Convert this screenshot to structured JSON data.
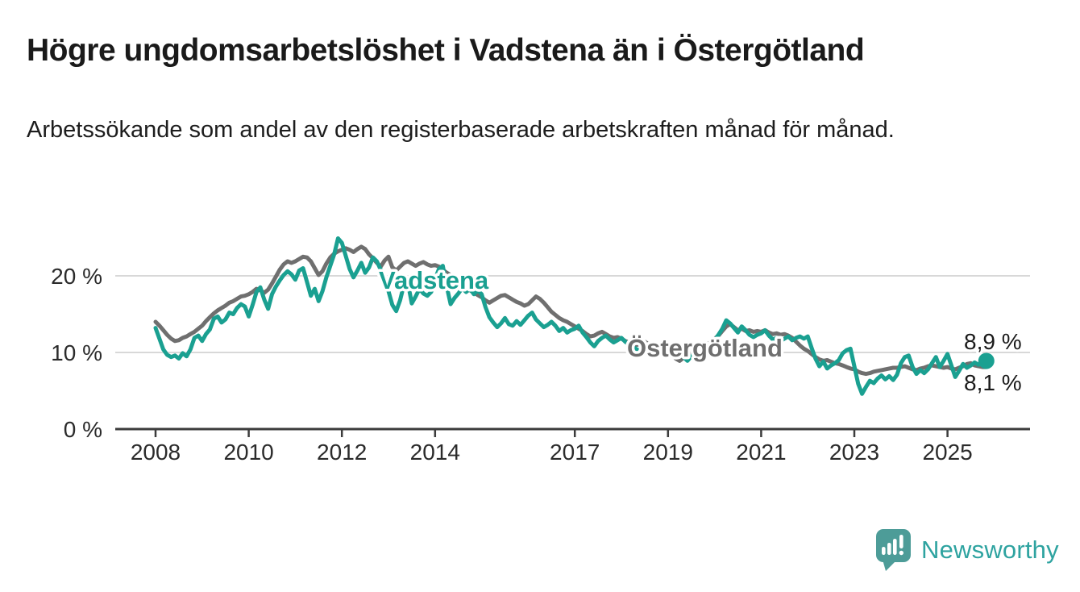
{
  "page": {
    "title": "Högre ungdomsarbetslöshet i Vadstena än i Östergötland",
    "subtitle": "Arbetssökande som andel av den registerbaserade arbetskraften månad för månad."
  },
  "branding": {
    "logo_text": "Newsworthy",
    "logo_icon": "bar-chart-speech-bubble-icon"
  },
  "colors": {
    "vadstena": "#1aa091",
    "ostergotland": "#6f6f6f",
    "grid": "#d8d8d8",
    "axis": "#3c3c3c",
    "text": "#1a1a1a",
    "logo_badge": "#4d9c98",
    "logo_text": "#2ea3a0"
  },
  "chart_data": {
    "type": "line",
    "title": "Högre ungdomsarbetslöshet i Vadstena än i Östergötland",
    "subtitle": "Arbetssökande som andel av den registerbaserade arbetskraften månad för månad.",
    "frequency": "monthly",
    "x_start": "2008-01",
    "x_end": "2025-11",
    "ylim": [
      0,
      27
    ],
    "grid": "horizontal-only",
    "y_ticks": [
      {
        "value": 0,
        "label": "0 %"
      },
      {
        "value": 10,
        "label": "10 %"
      },
      {
        "value": 20,
        "label": "20 %"
      }
    ],
    "x_ticks": [
      {
        "year": 2008,
        "label": "2008"
      },
      {
        "year": 2010,
        "label": "2010"
      },
      {
        "year": 2012,
        "label": "2012"
      },
      {
        "year": 2014,
        "label": "2014"
      },
      {
        "year": 2017,
        "label": "2017"
      },
      {
        "year": 2019,
        "label": "2019"
      },
      {
        "year": 2021,
        "label": "2021"
      },
      {
        "year": 2023,
        "label": "2023"
      },
      {
        "year": 2025,
        "label": "2025"
      }
    ],
    "series": [
      {
        "name": "Östergötland",
        "color": "#6f6f6f",
        "end_dot": false,
        "end_value_label": "8,1 %",
        "values": [
          14.0,
          13.5,
          12.9,
          12.3,
          11.8,
          11.5,
          11.6,
          11.9,
          12.1,
          12.4,
          12.7,
          13.1,
          13.5,
          14.1,
          14.6,
          15.1,
          15.5,
          15.8,
          16.1,
          16.5,
          16.7,
          17.0,
          17.3,
          17.4,
          17.6,
          17.9,
          18.3,
          18.1,
          17.8,
          18.2,
          19.0,
          19.9,
          20.8,
          21.5,
          21.9,
          21.7,
          21.9,
          22.2,
          22.5,
          22.4,
          21.9,
          21.0,
          20.1,
          20.6,
          21.6,
          22.4,
          22.9,
          23.2,
          23.4,
          23.6,
          23.4,
          23.1,
          23.5,
          23.8,
          23.5,
          22.8,
          22.3,
          21.7,
          21.2,
          22.0,
          22.5,
          21.1,
          20.7,
          21.2,
          21.7,
          21.9,
          21.6,
          21.3,
          21.6,
          21.8,
          21.5,
          21.3,
          21.4,
          21.2,
          20.8,
          20.4,
          20.1,
          19.7,
          19.2,
          18.8,
          18.5,
          18.1,
          17.8,
          17.5,
          17.2,
          16.8,
          16.5,
          16.8,
          17.1,
          17.4,
          17.5,
          17.2,
          16.9,
          16.6,
          16.4,
          16.1,
          16.3,
          16.8,
          17.3,
          17.0,
          16.5,
          15.9,
          15.3,
          14.9,
          14.5,
          14.2,
          14.0,
          13.7,
          13.4,
          13.1,
          12.8,
          12.4,
          12.1,
          12.2,
          12.5,
          12.7,
          12.4,
          12.1,
          11.9,
          12.0,
          11.8,
          11.5,
          11.3,
          11.1,
          11.0,
          11.2,
          11.4,
          11.1,
          10.9,
          10.7,
          10.5,
          10.4,
          10.1,
          9.7,
          9.2,
          8.9,
          9.3,
          9.6,
          9.9,
          10.2,
          10.4,
          10.7,
          11.0,
          11.4,
          11.8,
          12.2,
          12.8,
          13.4,
          13.7,
          13.3,
          12.9,
          13.1,
          12.8,
          12.9,
          12.7,
          12.8,
          12.7,
          12.9,
          12.6,
          12.4,
          12.5,
          12.3,
          12.4,
          12.2,
          11.9,
          11.4,
          10.9,
          10.5,
          10.2,
          9.8,
          9.4,
          9.1,
          8.9,
          9.0,
          8.8,
          8.6,
          8.5,
          8.3,
          8.1,
          7.9,
          7.8,
          7.5,
          7.3,
          7.2,
          7.3,
          7.5,
          7.6,
          7.7,
          7.8,
          7.9,
          8.0,
          8.0,
          8.1,
          8.2,
          8.0,
          7.8,
          7.7,
          7.9,
          8.0,
          8.2,
          8.3,
          8.2,
          8.1,
          8.0,
          8.1,
          7.9,
          7.8,
          8.0,
          8.2,
          8.5,
          8.6,
          8.3,
          8.2,
          8.1,
          8.1
        ]
      },
      {
        "name": "Vadstena",
        "color": "#1aa091",
        "end_dot": true,
        "end_value_label": "8,9 %",
        "values": [
          13.2,
          11.8,
          10.4,
          9.7,
          9.4,
          9.6,
          9.2,
          9.9,
          9.5,
          10.4,
          11.9,
          12.2,
          11.5,
          12.4,
          13.0,
          14.4,
          14.7,
          13.9,
          14.3,
          15.2,
          15.0,
          15.8,
          16.3,
          16.0,
          14.7,
          16.2,
          17.9,
          18.5,
          16.9,
          15.7,
          17.6,
          18.6,
          19.4,
          20.1,
          20.6,
          20.2,
          19.5,
          20.7,
          21.0,
          19.2,
          17.4,
          18.3,
          16.7,
          18.0,
          19.8,
          21.3,
          22.8,
          24.9,
          24.3,
          22.6,
          20.9,
          19.8,
          20.7,
          21.7,
          20.4,
          21.1,
          22.4,
          21.9,
          20.8,
          19.6,
          18.0,
          16.2,
          15.4,
          16.8,
          18.9,
          19.1,
          16.4,
          17.3,
          18.3,
          17.7,
          17.4,
          17.9,
          19.6,
          20.9,
          21.3,
          18.6,
          16.3,
          17.1,
          17.7,
          18.4,
          17.9,
          18.3,
          17.6,
          18.1,
          17.6,
          15.9,
          14.6,
          13.9,
          13.3,
          13.8,
          14.5,
          13.7,
          13.5,
          14.1,
          13.6,
          14.2,
          14.8,
          15.2,
          14.3,
          13.8,
          13.3,
          13.6,
          14.0,
          13.5,
          12.8,
          13.2,
          12.6,
          12.9,
          13.1,
          13.5,
          12.6,
          12.0,
          11.3,
          10.8,
          11.5,
          11.9,
          12.2,
          11.7,
          11.3,
          11.6,
          11.9,
          11.4,
          11.0,
          10.7,
          10.4,
          10.1,
          10.6,
          11.0,
          10.5,
          10.1,
          9.8,
          9.6,
          9.7,
          10.2,
          10.7,
          10.1,
          9.4,
          8.9,
          9.5,
          10.0,
          10.4,
          10.7,
          11.0,
          11.2,
          11.6,
          12.3,
          13.1,
          14.2,
          13.8,
          13.2,
          12.6,
          13.4,
          12.9,
          12.3,
          12.0,
          12.3,
          12.5,
          12.9,
          12.2,
          11.7,
          11.9,
          11.5,
          11.8,
          12.1,
          11.6,
          11.9,
          12.1,
          11.8,
          12.1,
          10.6,
          9.2,
          8.2,
          8.8,
          7.9,
          8.3,
          8.6,
          9.0,
          9.9,
          10.3,
          10.5,
          8.2,
          5.9,
          4.6,
          5.5,
          6.3,
          6.0,
          6.6,
          7.0,
          6.5,
          6.9,
          6.4,
          7.1,
          8.6,
          9.4,
          9.6,
          8.1,
          7.2,
          7.7,
          7.3,
          7.8,
          8.6,
          9.4,
          8.1,
          8.9,
          9.8,
          8.3,
          6.8,
          7.6,
          8.5,
          8.0,
          8.3,
          8.7,
          8.4,
          8.6,
          8.9
        ]
      }
    ],
    "annotations": {
      "vadstena_label": "Vadstena",
      "ostergotland_label": "Östergötland",
      "end_value_top": "8,9 %",
      "end_value_bottom": "8,1 %"
    },
    "legend_position": "inline-labels"
  }
}
